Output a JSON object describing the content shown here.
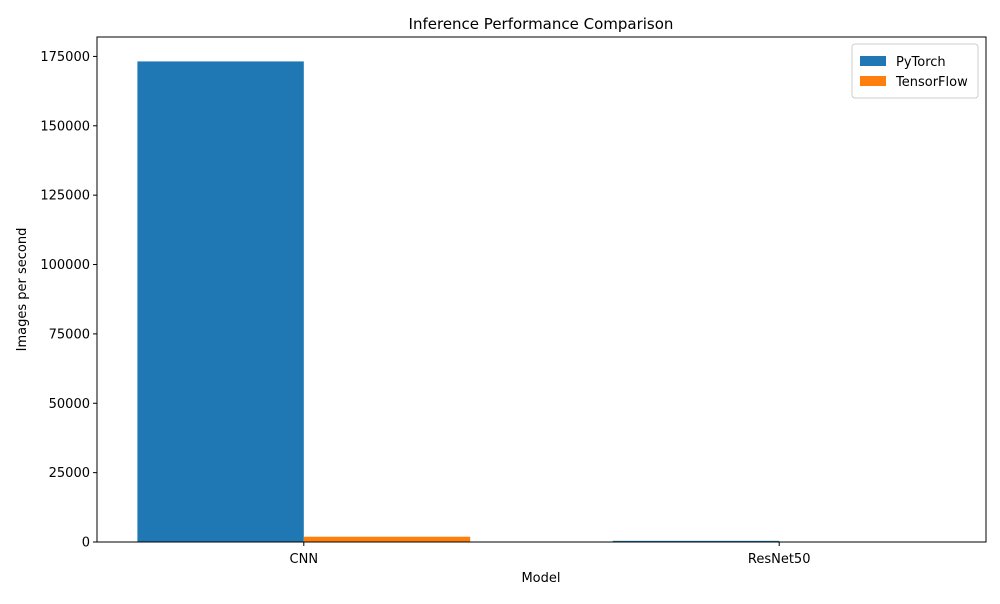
{
  "chart_data": {
    "type": "bar",
    "title": "Inference Performance Comparison",
    "xlabel": "Model",
    "ylabel": "Images per second",
    "categories": [
      "CNN",
      "ResNet50"
    ],
    "series": [
      {
        "name": "PyTorch",
        "color": "#1f77b4",
        "values": [
          173200,
          420
        ]
      },
      {
        "name": "TensorFlow",
        "color": "#ff7f0e",
        "values": [
          1900,
          150
        ]
      }
    ],
    "ylim": [
      0,
      182000
    ],
    "yticks": [
      0,
      25000,
      50000,
      75000,
      100000,
      125000,
      150000,
      175000
    ],
    "ytick_labels": [
      "0",
      "25000",
      "50000",
      "75000",
      "100000",
      "125000",
      "150000",
      "175000"
    ],
    "grid": false,
    "legend_position": "top-right"
  }
}
